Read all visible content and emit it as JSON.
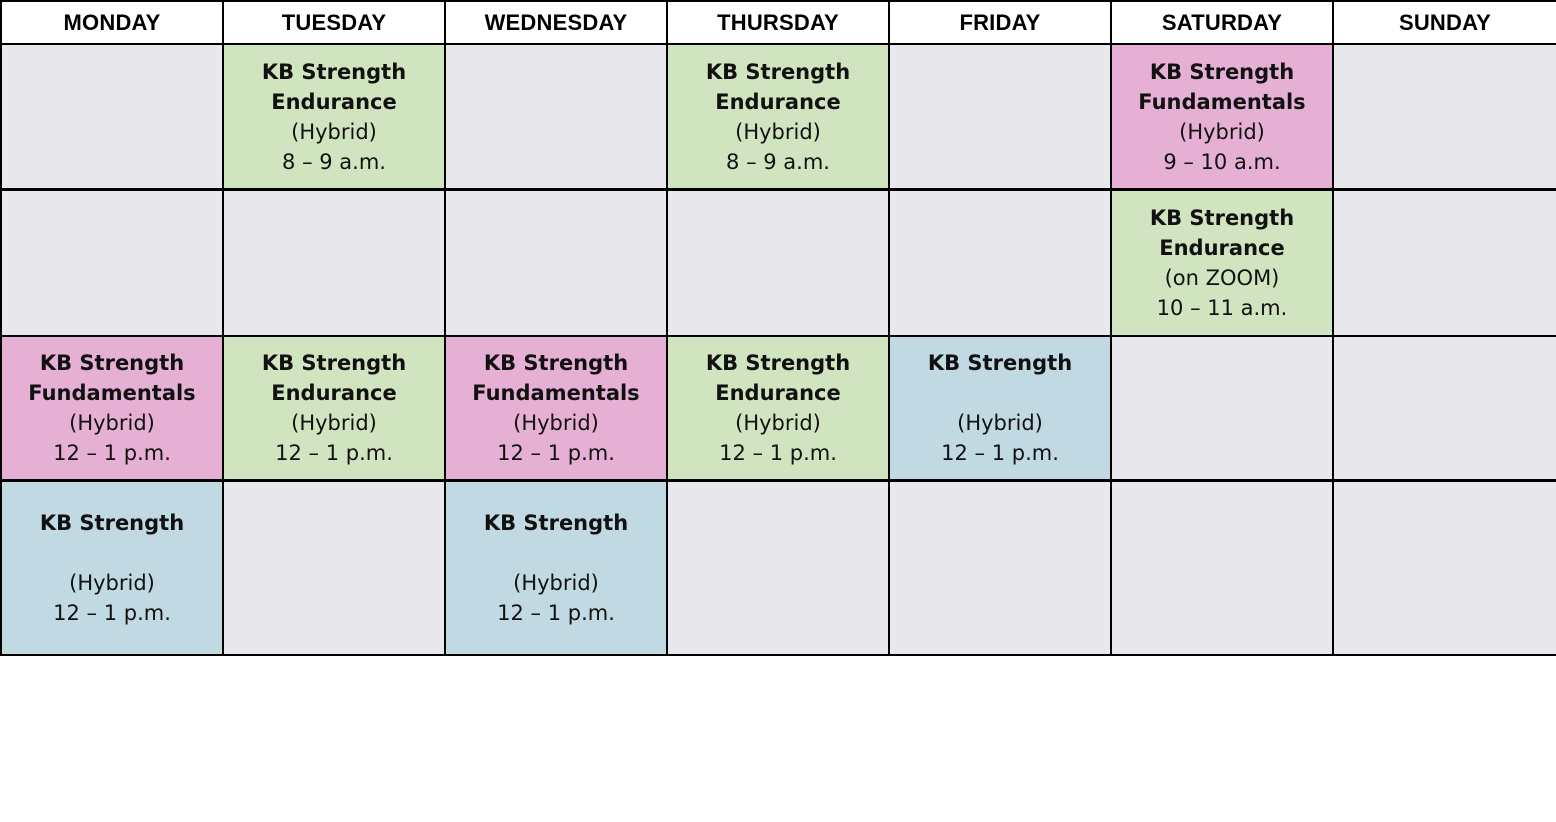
{
  "days": [
    "MONDAY",
    "TUESDAY",
    "WEDNESDAY",
    "THURSDAY",
    "FRIDAY",
    "SATURDAY",
    "SUNDAY"
  ],
  "classes": {
    "endurance_hybrid_8": {
      "title_line1": "KB Strength",
      "title_line2": "Endurance",
      "mode": "(Hybrid)",
      "time": "8 – 9 a.m."
    },
    "fundamentals_hybrid_9": {
      "title_line1": "KB Strength",
      "title_line2": "Fundamentals",
      "mode": "(Hybrid)",
      "time": "9 – 10 a.m."
    },
    "endurance_zoom_10": {
      "title_line1": "KB Strength",
      "title_line2": "Endurance",
      "mode": "(on ZOOM)",
      "time": "10 – 11 a.m."
    },
    "fundamentals_hybrid_12": {
      "title_line1": "KB Strength",
      "title_line2": "Fundamentals",
      "mode": "(Hybrid)",
      "time": "12 – 1 p.m."
    },
    "endurance_hybrid_12": {
      "title_line1": "KB Strength",
      "title_line2": "Endurance",
      "mode": "(Hybrid)",
      "time": "12 – 1 p.m."
    },
    "strength_hybrid_12": {
      "title_line1": "KB Strength",
      "title_line2": "",
      "mode": "(Hybrid)",
      "time": "12 – 1 p.m."
    }
  },
  "colors": {
    "endurance": "#d1e4c0",
    "fundamentals": "#e6b0d5",
    "strength": "#c1d9e3",
    "empty": "#e8e7ec"
  }
}
